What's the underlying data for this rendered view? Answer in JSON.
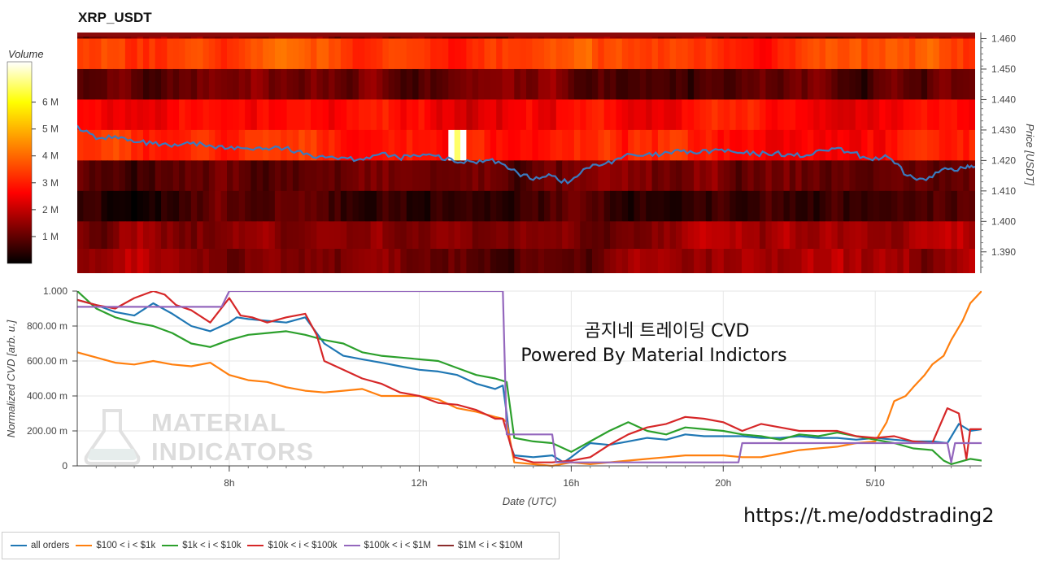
{
  "chart_data": [
    {
      "type": "heatmap",
      "title": "XRP_USDT",
      "ylabel": "Price [USDT]",
      "y_ticks": [
        "1.460",
        "1.450",
        "1.440",
        "1.430",
        "1.420",
        "1.410",
        "1.400",
        "1.390"
      ],
      "ylim": [
        1.383,
        1.462
      ],
      "colorbar": {
        "title": "Volume",
        "ticks": [
          "6 M",
          "5 M",
          "4 M",
          "3 M",
          "2 M",
          "1 M"
        ],
        "range": [
          0,
          7.5
        ],
        "colors": [
          "#000000",
          "#ff0000",
          "#ffff00",
          "#ffffff"
        ]
      },
      "price_levels": [
        1.4595,
        1.455,
        1.445,
        1.435,
        1.425,
        1.415,
        1.405,
        1.395,
        1.386
      ],
      "level_base_volume_M": [
        1.2,
        3.3,
        1.1,
        2.6,
        3.0,
        1.0,
        0.6,
        1.5,
        1.4
      ],
      "price_series": {
        "color": "#3a7bbf",
        "x_hours": [
          3.0,
          3.5,
          4.0,
          4.5,
          5.0,
          5.5,
          6.0,
          6.5,
          7.0,
          7.5,
          8.0,
          8.5,
          9.0,
          9.5,
          10.0,
          10.5,
          11.0,
          11.5,
          12.0,
          12.5,
          13.0,
          13.5,
          14.0,
          14.5,
          15.0,
          15.5,
          16.0,
          16.5,
          17.0,
          17.5,
          18.0,
          18.5,
          19.0,
          19.5,
          20.0,
          20.5,
          21.0,
          21.5,
          22.0,
          22.5,
          23.0,
          23.5,
          24.0,
          24.5,
          25.0,
          25.5,
          26.0,
          26.5,
          26.8
        ],
        "values": [
          1.4315,
          1.427,
          1.428,
          1.426,
          1.4255,
          1.4245,
          1.4255,
          1.425,
          1.424,
          1.424,
          1.424,
          1.424,
          1.422,
          1.4215,
          1.421,
          1.4205,
          1.422,
          1.421,
          1.4215,
          1.4215,
          1.4195,
          1.4195,
          1.4205,
          1.417,
          1.414,
          1.4155,
          1.4125,
          1.4175,
          1.419,
          1.4215,
          1.4215,
          1.422,
          1.423,
          1.4225,
          1.4235,
          1.4225,
          1.422,
          1.4225,
          1.4215,
          1.422,
          1.424,
          1.4225,
          1.4205,
          1.421,
          1.415,
          1.4135,
          1.4175,
          1.4175,
          1.418
        ]
      }
    },
    {
      "type": "line",
      "xlabel": "Date (UTC)",
      "ylabel": "Normalized CVD [arb. u.]",
      "x_unit": "hours from 00:00 UTC on the first day",
      "x_range": [
        3.0,
        26.8
      ],
      "x_ticks": [
        {
          "label": "8h",
          "x": 7.0
        },
        {
          "label": "12h",
          "x": 12.0
        },
        {
          "label": "16h",
          "x": 16.0
        },
        {
          "label": "20h",
          "x": 20.0
        },
        {
          "label": "5/10",
          "x": 24.0
        }
      ],
      "y_ticks": [
        {
          "label": "1.000",
          "y": 1.0
        },
        {
          "label": "800.00 m",
          "y": 0.8
        },
        {
          "label": "600.00 m",
          "y": 0.6
        },
        {
          "label": "400.00 m",
          "y": 0.4
        },
        {
          "label": "200.00 m",
          "y": 0.2
        },
        {
          "label": "0",
          "y": 0.0
        }
      ],
      "ylim": [
        0,
        1.0
      ],
      "annotation": [
        "곰지네 트레이딩 CVD",
        "Powered By Material Indictors"
      ],
      "watermark": [
        "MATERIAL",
        "INDICATORS"
      ],
      "series": [
        {
          "name": "all orders",
          "color": "#1f77b4",
          "x": [
            3.0,
            3.5,
            4.0,
            4.5,
            5.0,
            5.5,
            6.0,
            6.5,
            7.0,
            7.2,
            7.5,
            8.0,
            8.5,
            9.0,
            9.5,
            10.0,
            10.5,
            11.0,
            11.5,
            12.0,
            12.5,
            13.0,
            13.5,
            14.0,
            14.2,
            14.3,
            14.4,
            14.5,
            15.0,
            15.5,
            15.8,
            16.0,
            16.3,
            16.5,
            17.0,
            17.5,
            18.0,
            18.5,
            19.0,
            19.5,
            20.0,
            20.5,
            21.0,
            21.5,
            22.0,
            22.5,
            23.0,
            23.5,
            24.0,
            24.5,
            25.0,
            25.5,
            25.9,
            26.2,
            26.5,
            26.8
          ],
          "values": [
            0.95,
            0.92,
            0.88,
            0.86,
            0.93,
            0.87,
            0.8,
            0.77,
            0.82,
            0.85,
            0.84,
            0.83,
            0.82,
            0.85,
            0.7,
            0.63,
            0.61,
            0.59,
            0.57,
            0.55,
            0.54,
            0.52,
            0.47,
            0.44,
            0.46,
            0.3,
            0.12,
            0.06,
            0.05,
            0.06,
            0.02,
            0.05,
            0.1,
            0.13,
            0.12,
            0.14,
            0.16,
            0.15,
            0.18,
            0.17,
            0.17,
            0.17,
            0.16,
            0.16,
            0.17,
            0.16,
            0.16,
            0.15,
            0.16,
            0.15,
            0.14,
            0.14,
            0.13,
            0.24,
            0.2,
            0.21
          ]
        },
        {
          "name": "$100 < i < $1k",
          "color": "#ff7f0e",
          "x": [
            3.0,
            3.5,
            4.0,
            4.5,
            5.0,
            5.5,
            6.0,
            6.5,
            7.0,
            7.5,
            8.0,
            8.5,
            9.0,
            9.5,
            10.0,
            10.5,
            11.0,
            11.5,
            12.0,
            12.5,
            13.0,
            13.5,
            14.0,
            14.2,
            14.3,
            14.5,
            15.0,
            15.5,
            16.0,
            16.5,
            17.0,
            17.5,
            18.0,
            18.5,
            19.0,
            19.5,
            20.0,
            20.5,
            21.0,
            21.5,
            22.0,
            22.5,
            23.0,
            23.5,
            24.0,
            24.3,
            24.5,
            24.8,
            25.0,
            25.3,
            25.5,
            25.8,
            26.0,
            26.3,
            26.5,
            26.8
          ],
          "values": [
            0.65,
            0.62,
            0.59,
            0.58,
            0.6,
            0.58,
            0.57,
            0.59,
            0.52,
            0.49,
            0.48,
            0.45,
            0.43,
            0.42,
            0.43,
            0.44,
            0.4,
            0.4,
            0.4,
            0.38,
            0.33,
            0.31,
            0.28,
            0.27,
            0.25,
            0.02,
            0.01,
            0.0,
            0.02,
            0.01,
            0.02,
            0.03,
            0.04,
            0.05,
            0.06,
            0.06,
            0.06,
            0.05,
            0.05,
            0.07,
            0.09,
            0.1,
            0.11,
            0.13,
            0.14,
            0.25,
            0.37,
            0.4,
            0.45,
            0.52,
            0.58,
            0.63,
            0.72,
            0.83,
            0.93,
            1.0
          ]
        },
        {
          "name": "$1k < i < $10k",
          "color": "#2ca02c",
          "x": [
            3.0,
            3.5,
            4.0,
            4.5,
            5.0,
            5.5,
            6.0,
            6.5,
            7.0,
            7.5,
            8.0,
            8.5,
            9.0,
            9.5,
            10.0,
            10.5,
            11.0,
            11.5,
            12.0,
            12.5,
            13.0,
            13.5,
            14.0,
            14.3,
            14.5,
            15.0,
            15.5,
            16.0,
            16.5,
            17.0,
            17.5,
            18.0,
            18.5,
            19.0,
            19.5,
            20.0,
            20.5,
            21.0,
            21.5,
            22.0,
            22.5,
            23.0,
            23.5,
            24.0,
            24.5,
            25.0,
            25.5,
            25.8,
            26.0,
            26.5,
            26.8
          ],
          "values": [
            1.0,
            0.9,
            0.85,
            0.82,
            0.8,
            0.76,
            0.7,
            0.68,
            0.72,
            0.75,
            0.76,
            0.77,
            0.75,
            0.72,
            0.7,
            0.65,
            0.63,
            0.62,
            0.61,
            0.6,
            0.56,
            0.52,
            0.5,
            0.48,
            0.16,
            0.14,
            0.13,
            0.08,
            0.14,
            0.2,
            0.25,
            0.2,
            0.18,
            0.22,
            0.21,
            0.2,
            0.18,
            0.17,
            0.15,
            0.18,
            0.17,
            0.19,
            0.17,
            0.15,
            0.13,
            0.1,
            0.09,
            0.03,
            0.01,
            0.04,
            0.03
          ]
        },
        {
          "name": "$10k < i < $100k",
          "color": "#d62728",
          "x": [
            3.0,
            3.5,
            4.0,
            4.5,
            5.0,
            5.3,
            5.6,
            6.0,
            6.5,
            7.0,
            7.3,
            7.6,
            8.0,
            8.5,
            9.0,
            9.3,
            9.5,
            10.0,
            10.5,
            11.0,
            11.5,
            12.0,
            12.5,
            13.0,
            13.5,
            14.0,
            14.2,
            14.5,
            15.0,
            15.5,
            16.0,
            16.5,
            17.0,
            17.5,
            18.0,
            18.5,
            19.0,
            19.5,
            20.0,
            20.5,
            21.0,
            21.5,
            22.0,
            22.5,
            23.0,
            23.5,
            24.0,
            24.5,
            25.0,
            25.5,
            25.9,
            26.2,
            26.4,
            26.5,
            26.8
          ],
          "values": [
            0.95,
            0.92,
            0.9,
            0.96,
            1.0,
            0.98,
            0.92,
            0.89,
            0.82,
            0.96,
            0.86,
            0.85,
            0.82,
            0.85,
            0.87,
            0.75,
            0.6,
            0.55,
            0.5,
            0.47,
            0.42,
            0.4,
            0.36,
            0.35,
            0.32,
            0.27,
            0.27,
            0.05,
            0.02,
            0.02,
            0.03,
            0.05,
            0.12,
            0.18,
            0.22,
            0.24,
            0.28,
            0.27,
            0.25,
            0.2,
            0.24,
            0.22,
            0.2,
            0.2,
            0.2,
            0.17,
            0.16,
            0.17,
            0.14,
            0.13,
            0.33,
            0.3,
            0.04,
            0.21,
            0.21
          ]
        },
        {
          "name": "$100k < i < $1M",
          "color": "#9467bd",
          "x": [
            3.0,
            6.8,
            7.0,
            14.2,
            14.3,
            15.5,
            15.6,
            16.0,
            20.4,
            20.5,
            25.5,
            25.9,
            26.0,
            26.1,
            26.8
          ],
          "values": [
            0.91,
            0.91,
            1.0,
            1.0,
            0.18,
            0.18,
            0.02,
            0.02,
            0.02,
            0.13,
            0.13,
            0.13,
            0.02,
            0.13,
            0.13
          ]
        },
        {
          "name": "$1M < i < $10M",
          "color": "#8c2d2d",
          "x": [],
          "values": []
        }
      ]
    }
  ],
  "footer": {
    "url": "https://t.me/oddstrading2"
  },
  "legend_items": [
    {
      "label": "all orders",
      "color": "#1f77b4"
    },
    {
      "label": "$100 < i < $1k",
      "color": "#ff7f0e"
    },
    {
      "label": "$1k < i < $10k",
      "color": "#2ca02c"
    },
    {
      "label": "$10k < i < $100k",
      "color": "#d62728"
    },
    {
      "label": "$100k < i < $1M",
      "color": "#9467bd"
    },
    {
      "label": "$1M < i < $10M",
      "color": "#8c2d2d"
    }
  ]
}
